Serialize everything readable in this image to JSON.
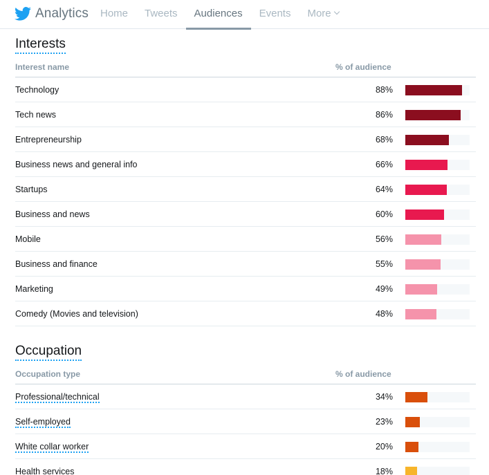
{
  "header": {
    "brand": "Analytics",
    "nav": [
      {
        "label": "Home",
        "active": false
      },
      {
        "label": "Tweets",
        "active": false
      },
      {
        "label": "Audiences",
        "active": true
      },
      {
        "label": "Events",
        "active": false
      },
      {
        "label": "More",
        "active": false
      }
    ]
  },
  "interests": {
    "title": "Interests",
    "col_name": "Interest name",
    "col_pct": "% of audience",
    "rows": [
      {
        "name": "Technology",
        "pct": "88%",
        "value": 88,
        "color": "#8b0e1f"
      },
      {
        "name": "Tech news",
        "pct": "86%",
        "value": 86,
        "color": "#8b0e1f"
      },
      {
        "name": "Entrepreneurship",
        "pct": "68%",
        "value": 68,
        "color": "#8b0e1f"
      },
      {
        "name": "Business news and general info",
        "pct": "66%",
        "value": 66,
        "color": "#e8194f"
      },
      {
        "name": "Startups",
        "pct": "64%",
        "value": 64,
        "color": "#e8194f"
      },
      {
        "name": "Business and news",
        "pct": "60%",
        "value": 60,
        "color": "#e8194f"
      },
      {
        "name": "Mobile",
        "pct": "56%",
        "value": 56,
        "color": "#f593ab"
      },
      {
        "name": "Business and finance",
        "pct": "55%",
        "value": 55,
        "color": "#f593ab"
      },
      {
        "name": "Marketing",
        "pct": "49%",
        "value": 49,
        "color": "#f593ab"
      },
      {
        "name": "Comedy (Movies and television)",
        "pct": "48%",
        "value": 48,
        "color": "#f593ab"
      }
    ]
  },
  "occupation": {
    "title": "Occupation",
    "col_name": "Occupation type",
    "col_pct": "% of audience",
    "rows": [
      {
        "name": "Professional/technical",
        "pct": "34%",
        "value": 34,
        "color": "#d94f0b"
      },
      {
        "name": "Self-employed",
        "pct": "23%",
        "value": 23,
        "color": "#d94f0b"
      },
      {
        "name": "White collar worker",
        "pct": "20%",
        "value": 20,
        "color": "#d94f0b"
      },
      {
        "name": "Health services",
        "pct": "18%",
        "value": 18,
        "color": "#f7b52b"
      }
    ]
  },
  "icons": {
    "brand": "twitter-bird-icon",
    "more": "chevron-down-icon"
  }
}
